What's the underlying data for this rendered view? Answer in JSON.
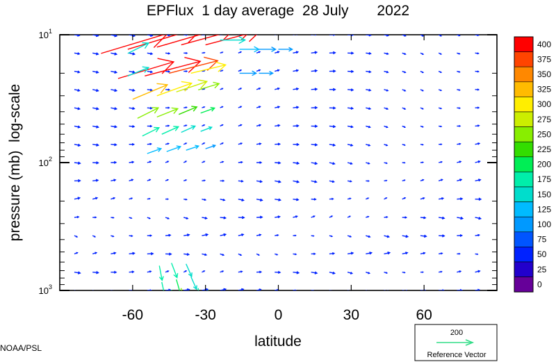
{
  "chart_data": {
    "type": "vector field",
    "title": "EPFlux  1 day average  28 July       2022",
    "xlabel": "latitude",
    "ylabel": "pressure (mb)  log-scale",
    "x_ticks": [
      "-60",
      "-30",
      "0",
      "30",
      "60"
    ],
    "x_tick_values": [
      -60,
      -30,
      0,
      30,
      60
    ],
    "y_ticks": [
      {
        "base": "10",
        "exp": "1",
        "value": 10
      },
      {
        "base": "10",
        "exp": "2",
        "value": 100
      },
      {
        "base": "10",
        "exp": "3",
        "value": 1000
      }
    ],
    "xlim": [
      -90,
      90
    ],
    "ylim": [
      1000,
      10
    ],
    "y_scale": "log",
    "grid": false,
    "colorbar": {
      "labels": [
        "400",
        "375",
        "350",
        "325",
        "300",
        "275",
        "250",
        "225",
        "200",
        "175",
        "150",
        "125",
        "100",
        "75",
        "50",
        "25",
        "0"
      ],
      "colors": [
        "#ff0000",
        "#ff4400",
        "#ff8800",
        "#ffbb00",
        "#ffee00",
        "#ccee00",
        "#88ee00",
        "#33dd00",
        "#00ee55",
        "#00eeaa",
        "#00ddcc",
        "#00bbff",
        "#0099ff",
        "#0055ff",
        "#0022ff",
        "#2200cc",
        "#660099"
      ]
    },
    "reference": {
      "value": "200",
      "label": "Reference Vector",
      "color": "#33dd88"
    },
    "vectors": [
      {
        "lat": -73,
        "p": 14,
        "u": 48,
        "v": 0.48,
        "mag": 400
      },
      {
        "lat": -62,
        "p": 13,
        "u": 55,
        "v": 0.55,
        "mag": 400
      },
      {
        "lat": -50,
        "p": 12.5,
        "u": 60,
        "v": 0.58,
        "mag": 400
      },
      {
        "lat": -40,
        "p": 12,
        "u": 55,
        "v": 0.5,
        "mag": 400
      },
      {
        "lat": -30,
        "p": 12,
        "u": 40,
        "v": 0.35,
        "mag": 390
      },
      {
        "lat": -62,
        "p": 14,
        "u": 15,
        "v": 0.25,
        "mag": 160
      },
      {
        "lat": -66,
        "p": 22,
        "u": 40,
        "v": 0.4,
        "mag": 400
      },
      {
        "lat": -55,
        "p": 21,
        "u": 40,
        "v": 0.35,
        "mag": 400
      },
      {
        "lat": -45,
        "p": 20,
        "u": 35,
        "v": 0.3,
        "mag": 380
      },
      {
        "lat": -36,
        "p": 20,
        "u": 25,
        "v": 0.2,
        "mag": 300
      },
      {
        "lat": -62,
        "p": 21,
        "u": 15,
        "v": 0.2,
        "mag": 160
      },
      {
        "lat": -60,
        "p": 32,
        "u": 25,
        "v": 0.35,
        "mag": 330
      },
      {
        "lat": -50,
        "p": 30,
        "u": 25,
        "v": 0.3,
        "mag": 310
      },
      {
        "lat": -42,
        "p": 28,
        "u": 22,
        "v": 0.25,
        "mag": 280
      },
      {
        "lat": -33,
        "p": 27,
        "u": 15,
        "v": 0.15,
        "mag": 250
      },
      {
        "lat": -58,
        "p": 45,
        "u": 15,
        "v": 0.25,
        "mag": 250
      },
      {
        "lat": -50,
        "p": 44,
        "u": 15,
        "v": 0.2,
        "mag": 240
      },
      {
        "lat": -41,
        "p": 42,
        "u": 13,
        "v": 0.18,
        "mag": 220
      },
      {
        "lat": -32,
        "p": 41,
        "u": 10,
        "v": 0.12,
        "mag": 200
      },
      {
        "lat": -56,
        "p": 62,
        "u": 12,
        "v": 0.2,
        "mag": 170
      },
      {
        "lat": -48,
        "p": 60,
        "u": 12,
        "v": 0.18,
        "mag": 170
      },
      {
        "lat": -40,
        "p": 58,
        "u": 10,
        "v": 0.15,
        "mag": 160
      },
      {
        "lat": -32,
        "p": 57,
        "u": 8,
        "v": 0.1,
        "mag": 150
      },
      {
        "lat": -54,
        "p": 85,
        "u": 10,
        "v": 0.12,
        "mag": 130
      },
      {
        "lat": -46,
        "p": 82,
        "u": 10,
        "v": 0.12,
        "mag": 130
      },
      {
        "lat": -38,
        "p": 80,
        "u": 9,
        "v": 0.1,
        "mag": 120
      },
      {
        "lat": -30,
        "p": 78,
        "u": 7,
        "v": 0.08,
        "mag": 110
      },
      {
        "lat": -24,
        "p": 11,
        "u": 18,
        "v": 0,
        "mag": 140
      },
      {
        "lat": -16,
        "p": 13,
        "u": 14,
        "v": 0,
        "mag": 120
      },
      {
        "lat": -8,
        "p": 13,
        "u": 12,
        "v": 0,
        "mag": 110
      },
      {
        "lat": 0,
        "p": 13,
        "u": 10,
        "v": 0,
        "mag": 100
      },
      {
        "lat": -16,
        "p": 20,
        "u": 12,
        "v": 0,
        "mag": 110
      },
      {
        "lat": -8,
        "p": 20,
        "u": 10,
        "v": 0,
        "mag": 100
      },
      {
        "lat": -49,
        "p": 640,
        "u": 2,
        "v": -0.35,
        "mag": 180
      },
      {
        "lat": -44,
        "p": 610,
        "u": 4,
        "v": -0.35,
        "mag": 170
      },
      {
        "lat": -38,
        "p": 620,
        "u": 4,
        "v": -0.3,
        "mag": 150
      },
      {
        "lat": -48,
        "p": 860,
        "u": 2,
        "v": -0.3,
        "mag": 180
      },
      {
        "lat": -42,
        "p": 820,
        "u": 3,
        "v": -0.35,
        "mag": 200
      },
      {
        "lat": -36,
        "p": 780,
        "u": 4,
        "v": -0.3,
        "mag": 160
      },
      {
        "lat": -44,
        "p": 990,
        "u": 2,
        "v": -0.4,
        "mag": 210
      },
      {
        "lat": -40,
        "p": 960,
        "u": 1,
        "v": -0.45,
        "mag": 240
      },
      {
        "lat": -33,
        "p": 960,
        "u": 1,
        "v": -0.4,
        "mag": 180
      },
      {
        "lat": -29,
        "p": 990,
        "u": 0,
        "v": -0.2,
        "mag": 150
      }
    ]
  },
  "footer": {
    "credit": "NOAA/PSL"
  }
}
